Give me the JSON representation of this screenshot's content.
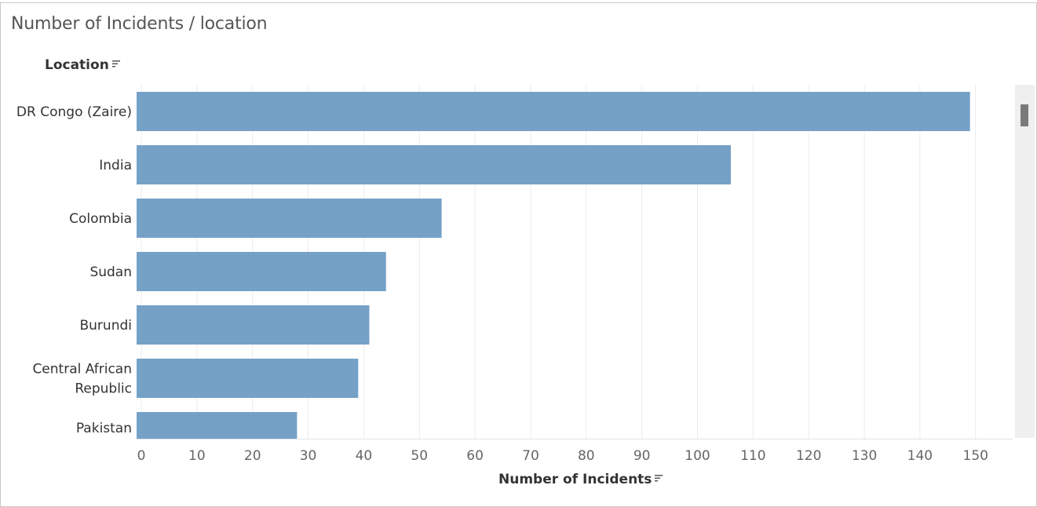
{
  "title": "Number of Incidents / location",
  "colors": {
    "bar": "#75a1c7",
    "grid": "#ececec",
    "tick_text": "#666666",
    "label_text": "#333333"
  },
  "chart_data": {
    "type": "bar",
    "orientation": "horizontal",
    "title": "Number of Incidents / location",
    "ylabel": "Location",
    "xlabel": "Number of Incidents",
    "categories": [
      [
        "DR Congo (Zaire)"
      ],
      [
        "India"
      ],
      [
        "Colombia"
      ],
      [
        "Sudan"
      ],
      [
        "Burundi"
      ],
      [
        "Central African",
        "Republic"
      ],
      [
        "Pakistan"
      ]
    ],
    "values": [
      149,
      106,
      54,
      44,
      41,
      39,
      28
    ],
    "xlim": [
      0,
      155
    ],
    "xticks": [
      0,
      10,
      20,
      30,
      40,
      50,
      60,
      70,
      80,
      90,
      100,
      110,
      120,
      130,
      140,
      150
    ],
    "grid": "vertical",
    "scrollable": true
  }
}
